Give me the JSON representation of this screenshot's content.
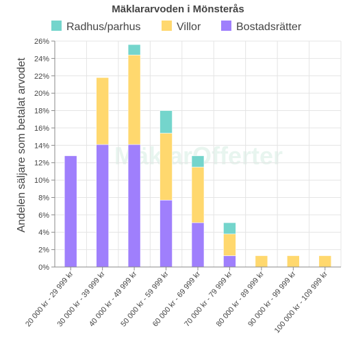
{
  "chart_data": {
    "type": "bar",
    "stacked": true,
    "title": "Mäklararvoden i Mönsterås",
    "ylabel": "Andelen säljare som betalat arvodet",
    "xlabel": "",
    "ylim": [
      0,
      26
    ],
    "ytick_step": 2,
    "ytick_suffix": "%",
    "grid": true,
    "legend_position": "top",
    "watermark": "MäklarOfferter",
    "categories": [
      "20 000 kr - 29 999 kr",
      "30 000 kr - 39 999 kr",
      "40 000 kr - 49 999 kr",
      "50 000 kr - 59 999 kr",
      "60 000 kr - 69 999 kr",
      "70 000 kr - 79 999 kr",
      "80 000 kr - 89 999 kr",
      "90 000 kr - 99 999 kr",
      "100 000 kr - 109 999 kr"
    ],
    "series": [
      {
        "name": "Bostadsrätter",
        "color": "#9f7ffc",
        "values": [
          12.8,
          14.1,
          14.1,
          7.7,
          5.1,
          1.3,
          0,
          0,
          0
        ]
      },
      {
        "name": "Villor",
        "color": "#ffd86e",
        "values": [
          0,
          7.7,
          10.3,
          7.7,
          6.4,
          2.5,
          1.3,
          1.3,
          1.3
        ]
      },
      {
        "name": "Radhus/parhus",
        "color": "#74d5cc",
        "values": [
          0,
          0,
          1.2,
          2.6,
          1.3,
          1.3,
          0,
          0,
          0
        ]
      }
    ],
    "legend_order": [
      "Radhus/parhus",
      "Villor",
      "Bostadsrätter"
    ]
  }
}
